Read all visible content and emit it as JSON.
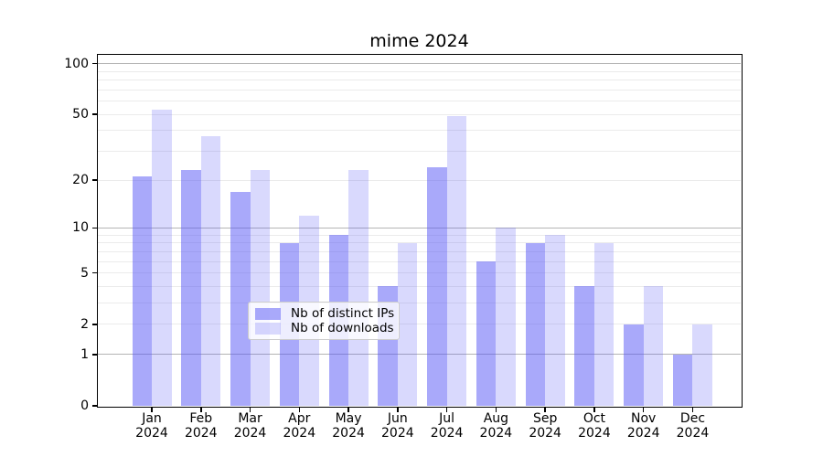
{
  "figure": {
    "title": "mime 2024"
  },
  "chart_data": {
    "type": "bar",
    "title": "mime 2024",
    "yscale": "log1p",
    "grid": "on",
    "categories": [
      "Jan",
      "Feb",
      "Mar",
      "Apr",
      "May",
      "Jun",
      "Jul",
      "Aug",
      "Sep",
      "Oct",
      "Nov",
      "Dec"
    ],
    "category_year": "2024",
    "series": [
      {
        "name": "Nb of distinct IPs",
        "color": "rgba(83,83,245,0.5)",
        "values": [
          21,
          23,
          17,
          8,
          9,
          4,
          24,
          6,
          8,
          4,
          2,
          1
        ]
      },
      {
        "name": "Nb of downloads",
        "color": "rgba(83,83,245,0.22)",
        "values": [
          53,
          37,
          23,
          12,
          23,
          8,
          49,
          10,
          9,
          8,
          4,
          2
        ]
      }
    ],
    "ylim": [
      0,
      113
    ],
    "ytick_labels": [
      "100",
      "50",
      "20",
      "10",
      "5",
      "2",
      "1",
      "0"
    ],
    "ytick_values": [
      100,
      50,
      20,
      10,
      5,
      2,
      1,
      0
    ],
    "gridline_major_values": [
      1,
      10,
      100
    ],
    "gridline_minor_values": [
      2,
      3,
      4,
      5,
      6,
      7,
      8,
      9,
      20,
      30,
      40,
      50,
      60,
      70,
      80,
      90
    ],
    "colors": {
      "grid_major": "#b4b4b4",
      "grid_minor": "#ebebeb",
      "bar_dark": "rgba(83,83,245,0.5)",
      "bar_light": "rgba(83,83,245,0.22)",
      "legend_border": "#cccccc"
    },
    "legend": {
      "position": "lower-center",
      "entries": [
        "Nb of distinct IPs",
        "Nb of downloads"
      ]
    }
  }
}
